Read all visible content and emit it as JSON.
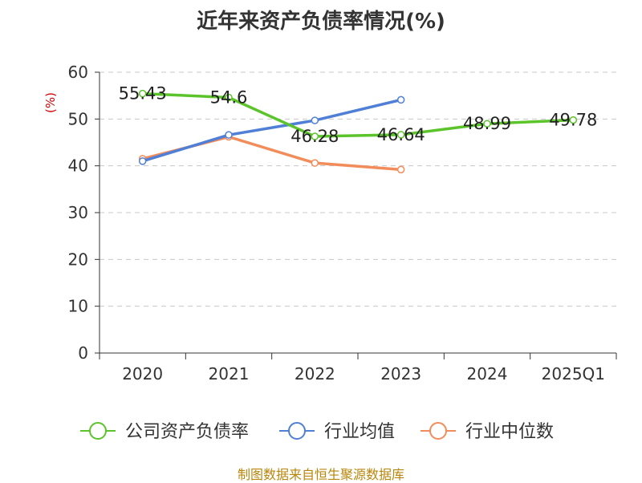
{
  "chart_data": {
    "type": "line",
    "title": "近年来资产负债率情况(%)",
    "ylabel": "(%)",
    "categories": [
      "2020",
      "2021",
      "2022",
      "2023",
      "2024",
      "2025Q1"
    ],
    "ylim": [
      0,
      60
    ],
    "yticks": [
      0,
      10,
      20,
      30,
      40,
      50,
      60
    ],
    "grid": true,
    "legend_position": "bottom",
    "series": [
      {
        "name": "公司资产负债率",
        "values": [
          55.43,
          54.6,
          46.28,
          46.64,
          48.99,
          49.78
        ],
        "labels": [
          "55.43",
          "54.6",
          "46.28",
          "46.64",
          "48.99",
          "49.78"
        ],
        "color": "#5cc42b"
      },
      {
        "name": "行业均值",
        "values": [
          41.0,
          46.6,
          49.7,
          54.1,
          null,
          null
        ],
        "color": "#4f7fd6"
      },
      {
        "name": "行业中位数",
        "values": [
          41.5,
          46.2,
          40.6,
          39.2,
          null,
          null
        ],
        "color": "#f28c5a"
      }
    ]
  },
  "source": "制图数据来自恒生聚源数据库"
}
